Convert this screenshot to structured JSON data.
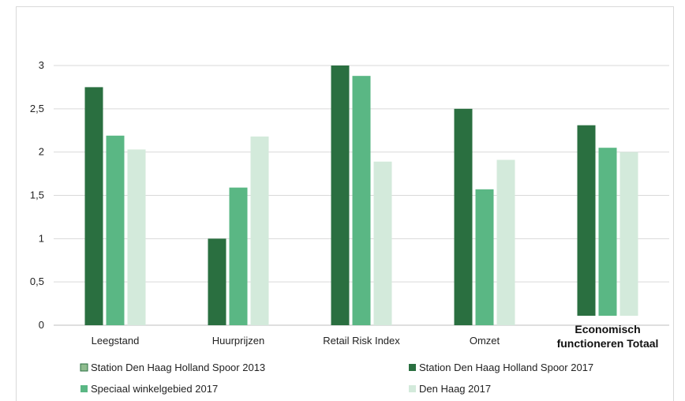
{
  "chart_data": {
    "type": "bar",
    "title": "",
    "xlabel": "",
    "ylabel": "",
    "ylim": [
      0,
      3
    ],
    "y_ticks": [
      "0",
      "0,5",
      "1",
      "1,5",
      "2",
      "2,5",
      "3"
    ],
    "categories": [
      "Leegstand",
      "Huurprijzen",
      "Retail Risk Index",
      "Omzet",
      "Economisch functioneren Totaal"
    ],
    "category_lines": [
      [
        "Leegstand"
      ],
      [
        "Huurprijzen"
      ],
      [
        "Retail Risk Index"
      ],
      [
        "Omzet"
      ],
      [
        "Economisch",
        "functioneren Totaal"
      ]
    ],
    "bold_category_index": 4,
    "grid": true,
    "legend_position": "bottom",
    "series": [
      {
        "name": "Station Den Haag Holland Spoor 2013",
        "color": "#8fbc8f",
        "values": [
          null,
          null,
          null,
          null,
          null
        ]
      },
      {
        "name": "Station Den Haag Holland Spoor 2017",
        "color": "#2a6f40",
        "values": [
          2.75,
          1.0,
          3.0,
          2.5,
          2.31
        ]
      },
      {
        "name": "Speciaal winkelgebied 2017",
        "color": "#5ab784",
        "values": [
          2.19,
          1.59,
          2.88,
          1.57,
          2.05
        ]
      },
      {
        "name": "Den Haag 2017",
        "color": "#d3eadb",
        "values": [
          2.03,
          2.18,
          1.89,
          1.91,
          2.0
        ]
      }
    ]
  }
}
